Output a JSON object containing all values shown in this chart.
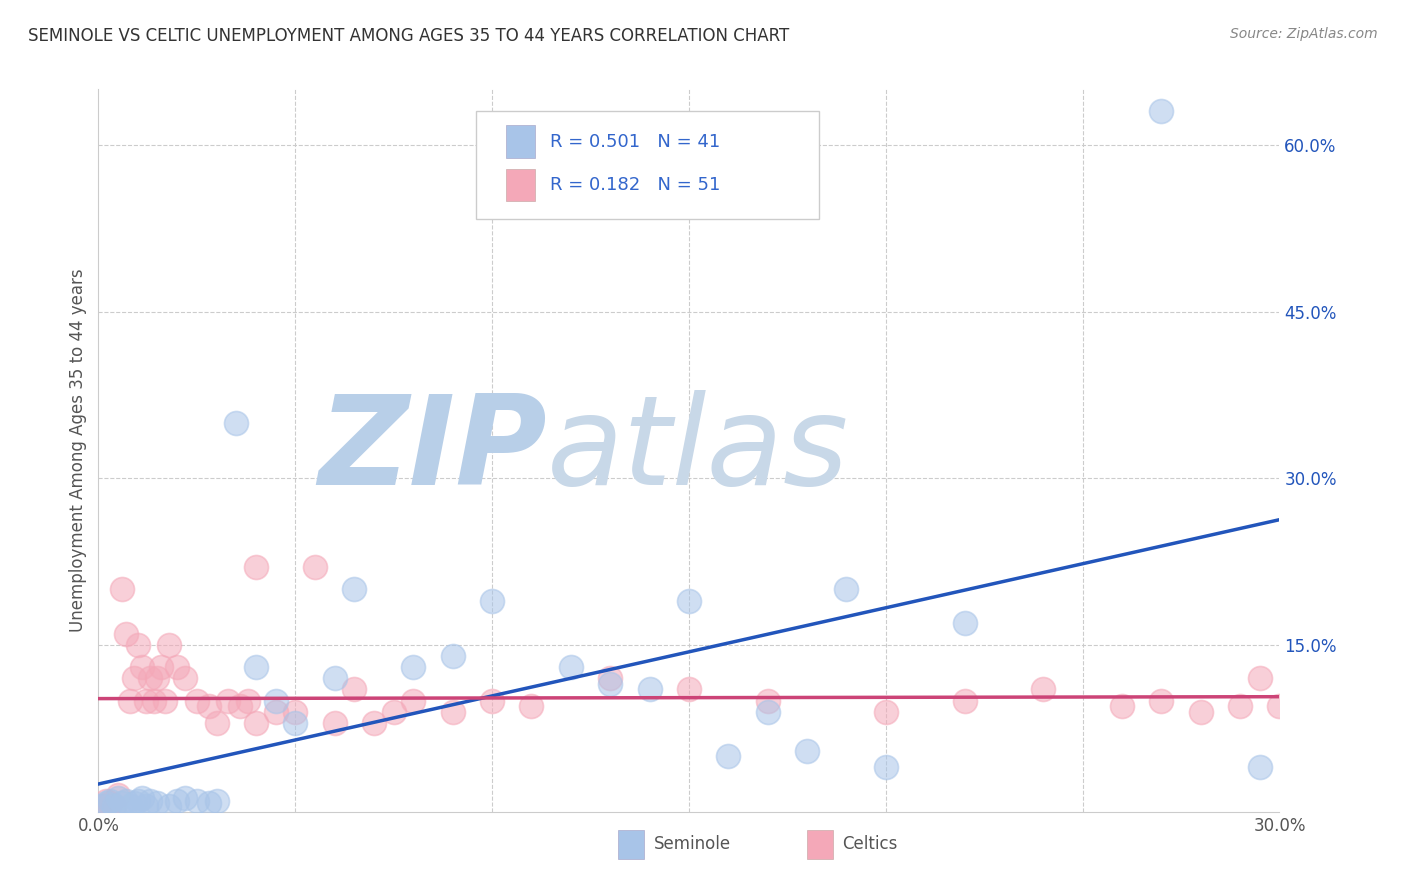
{
  "title": "SEMINOLE VS CELTIC UNEMPLOYMENT AMONG AGES 35 TO 44 YEARS CORRELATION CHART",
  "source": "Source: ZipAtlas.com",
  "ylabel": "Unemployment Among Ages 35 to 44 years",
  "xlim": [
    0.0,
    0.3
  ],
  "ylim": [
    0.0,
    0.65
  ],
  "y_ticks_right": [
    0.15,
    0.3,
    0.45,
    0.6
  ],
  "y_tick_labels_right": [
    "15.0%",
    "30.0%",
    "45.0%",
    "60.0%"
  ],
  "grid_color": "#cccccc",
  "background_color": "#ffffff",
  "watermark_zip_color": "#b8cfe8",
  "watermark_atlas_color": "#c8d8e8",
  "seminole_color": "#a8c4e8",
  "celtics_color": "#f4a8b8",
  "seminole_line_color": "#2255bb",
  "celtics_line_color": "#cc4477",
  "legend_text_color": "#3366cc",
  "legend_label_color": "#555555",
  "seminole_R": "0.501",
  "seminole_N": "41",
  "celtics_R": "0.182",
  "celtics_N": "51",
  "seminole_scatter_x": [
    0.001,
    0.002,
    0.003,
    0.004,
    0.005,
    0.006,
    0.007,
    0.008,
    0.009,
    0.01,
    0.011,
    0.012,
    0.013,
    0.015,
    0.018,
    0.02,
    0.022,
    0.025,
    0.028,
    0.03,
    0.035,
    0.04,
    0.045,
    0.05,
    0.06,
    0.065,
    0.08,
    0.09,
    0.1,
    0.12,
    0.13,
    0.14,
    0.15,
    0.16,
    0.17,
    0.18,
    0.19,
    0.2,
    0.22,
    0.27,
    0.295
  ],
  "seminole_scatter_y": [
    0.005,
    0.008,
    0.01,
    0.005,
    0.012,
    0.008,
    0.01,
    0.005,
    0.008,
    0.01,
    0.012,
    0.005,
    0.01,
    0.008,
    0.005,
    0.01,
    0.012,
    0.01,
    0.008,
    0.01,
    0.35,
    0.13,
    0.1,
    0.08,
    0.12,
    0.2,
    0.13,
    0.14,
    0.19,
    0.13,
    0.115,
    0.11,
    0.19,
    0.05,
    0.09,
    0.055,
    0.2,
    0.04,
    0.17,
    0.63,
    0.04
  ],
  "celtics_scatter_x": [
    0.001,
    0.002,
    0.003,
    0.004,
    0.005,
    0.006,
    0.007,
    0.008,
    0.009,
    0.01,
    0.011,
    0.012,
    0.013,
    0.014,
    0.015,
    0.016,
    0.017,
    0.018,
    0.02,
    0.022,
    0.025,
    0.028,
    0.03,
    0.033,
    0.036,
    0.038,
    0.04,
    0.045,
    0.05,
    0.06,
    0.065,
    0.07,
    0.075,
    0.08,
    0.09,
    0.1,
    0.11,
    0.13,
    0.15,
    0.17,
    0.2,
    0.22,
    0.24,
    0.26,
    0.27,
    0.28,
    0.29,
    0.295,
    0.3,
    0.04,
    0.055
  ],
  "celtics_scatter_y": [
    0.005,
    0.01,
    0.008,
    0.005,
    0.015,
    0.2,
    0.16,
    0.1,
    0.12,
    0.15,
    0.13,
    0.1,
    0.12,
    0.1,
    0.12,
    0.13,
    0.1,
    0.15,
    0.13,
    0.12,
    0.1,
    0.095,
    0.08,
    0.1,
    0.095,
    0.1,
    0.08,
    0.09,
    0.09,
    0.08,
    0.11,
    0.08,
    0.09,
    0.1,
    0.09,
    0.1,
    0.095,
    0.12,
    0.11,
    0.1,
    0.09,
    0.1,
    0.11,
    0.095,
    0.1,
    0.09,
    0.095,
    0.12,
    0.095,
    0.22,
    0.22
  ]
}
